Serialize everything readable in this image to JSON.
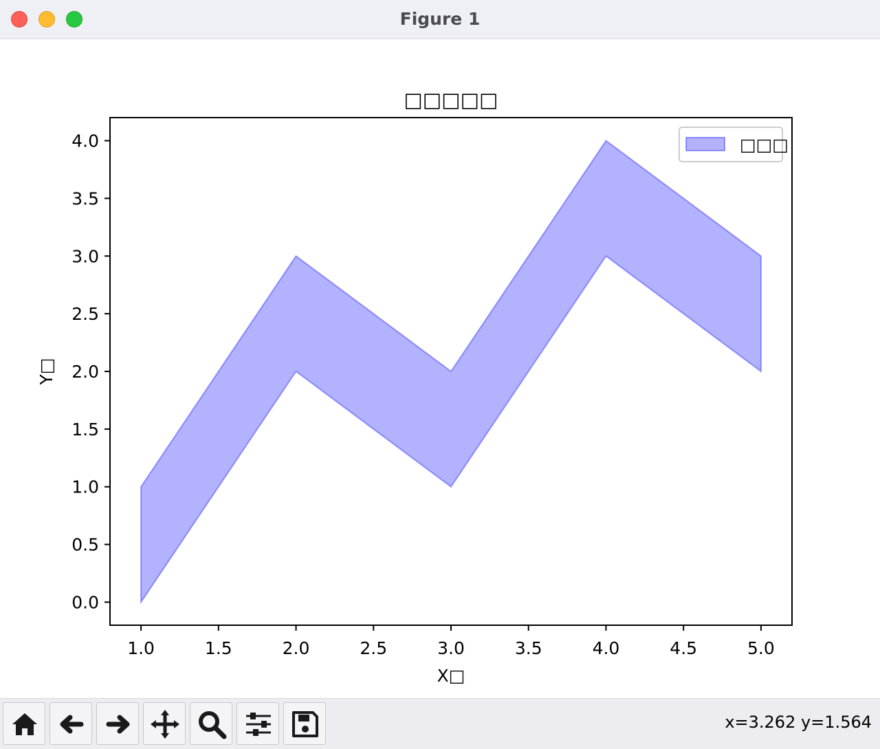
{
  "window": {
    "title": "Figure 1"
  },
  "toolbar": {
    "buttons": [
      {
        "name": "home-button",
        "icon": "home-icon"
      },
      {
        "name": "back-button",
        "icon": "arrow-left-icon"
      },
      {
        "name": "forward-button",
        "icon": "arrow-right-icon"
      },
      {
        "name": "pan-button",
        "icon": "move-icon"
      },
      {
        "name": "zoom-button",
        "icon": "magnifier-icon"
      },
      {
        "name": "configure-subplots-button",
        "icon": "sliders-icon"
      },
      {
        "name": "save-button",
        "icon": "floppy-disk-icon"
      }
    ],
    "coordinates": "x=3.262 y=1.564"
  },
  "chart_data": {
    "type": "area",
    "title": "□□□□□",
    "xlabel": "X□",
    "ylabel": "Y□",
    "x": [
      1,
      2,
      3,
      4,
      5
    ],
    "series": [
      {
        "name": "□□□",
        "lower": [
          0,
          2,
          1,
          3,
          2
        ],
        "upper": [
          1,
          3,
          2,
          4,
          3
        ],
        "color": "#0000ff",
        "fill_opacity": 0.3
      }
    ],
    "xlim": [
      0.8,
      5.2
    ],
    "ylim": [
      -0.2,
      4.2
    ],
    "xticks": [
      "1.0",
      "1.5",
      "2.0",
      "2.5",
      "3.0",
      "3.5",
      "4.0",
      "4.5",
      "5.0"
    ],
    "yticks": [
      "0.0",
      "0.5",
      "1.0",
      "1.5",
      "2.0",
      "2.5",
      "3.0",
      "3.5",
      "4.0"
    ],
    "grid": false,
    "legend_position": "upper right"
  }
}
